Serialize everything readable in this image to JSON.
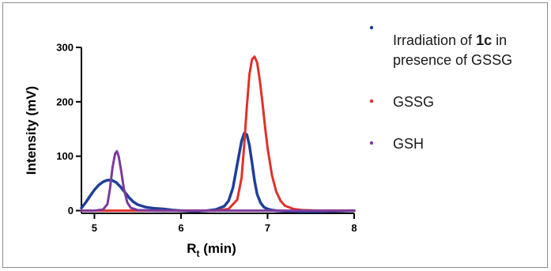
{
  "chart_data": {
    "type": "line",
    "xlabel": {
      "main": "R",
      "sub": "t",
      "unit": " (min)"
    },
    "ylabel": "Intensity  (mV)",
    "xlim": [
      4.85,
      8.0
    ],
    "ylim": [
      -5,
      300
    ],
    "xticks": [
      {
        "v": 5,
        "label": "5"
      },
      {
        "v": 6,
        "label": "6"
      },
      {
        "v": 7,
        "label": "7"
      },
      {
        "v": 8,
        "label": "8"
      }
    ],
    "yticks": [
      {
        "v": 0,
        "label": "0"
      },
      {
        "v": 100,
        "label": "100"
      },
      {
        "v": 200,
        "label": "200"
      },
      {
        "v": 300,
        "label": "300"
      }
    ],
    "grid": false,
    "legend_position": "right",
    "series": [
      {
        "name": "Irradiation of 1c in presence of GSSG",
        "legend_lines": [
          [
            {
              "text": "Irradiation of ",
              "bold": false
            },
            {
              "text": "1c",
              "bold": true
            },
            {
              "text": " in",
              "bold": false
            }
          ],
          [
            {
              "text": "presence of GSSG",
              "bold": false
            }
          ]
        ],
        "color": "#1f3f9a",
        "x": [
          4.85,
          4.9,
          4.95,
          5.0,
          5.05,
          5.1,
          5.15,
          5.2,
          5.25,
          5.3,
          5.35,
          5.4,
          5.45,
          5.5,
          5.6,
          5.7,
          5.8,
          5.9,
          6.0,
          6.1,
          6.2,
          6.3,
          6.4,
          6.5,
          6.55,
          6.6,
          6.65,
          6.7,
          6.73,
          6.76,
          6.79,
          6.82,
          6.85,
          6.88,
          6.92,
          6.96,
          7.0,
          7.05,
          7.1,
          7.2,
          7.4,
          7.6,
          7.8,
          8.0
        ],
        "y": [
          5,
          15,
          27,
          38,
          47,
          53,
          56,
          56,
          52,
          44,
          34,
          24,
          16,
          11,
          6,
          4,
          3,
          1,
          0,
          -1,
          -1,
          0,
          2,
          8,
          18,
          42,
          85,
          128,
          142,
          140,
          120,
          88,
          55,
          30,
          14,
          6,
          3,
          1,
          0,
          -1,
          -2,
          -2,
          -1,
          0
        ]
      },
      {
        "name": "GSSG",
        "color": "#e0312b",
        "x": [
          4.85,
          5.5,
          6.0,
          6.4,
          6.55,
          6.65,
          6.7,
          6.73,
          6.76,
          6.79,
          6.82,
          6.85,
          6.88,
          6.91,
          6.94,
          6.97,
          7.0,
          7.05,
          7.1,
          7.15,
          7.2,
          7.3,
          7.4,
          7.6,
          7.8,
          8.0
        ],
        "y": [
          0,
          0,
          0,
          0,
          3,
          20,
          60,
          120,
          190,
          250,
          278,
          283,
          272,
          240,
          200,
          155,
          115,
          65,
          35,
          18,
          9,
          3,
          1,
          0,
          0,
          0
        ]
      },
      {
        "name": "GSH",
        "color": "#7d3a9a",
        "x": [
          4.85,
          5.0,
          5.1,
          5.15,
          5.18,
          5.21,
          5.24,
          5.26,
          5.28,
          5.31,
          5.34,
          5.38,
          5.42,
          5.5,
          5.7,
          6.0,
          7.0,
          8.0
        ],
        "y": [
          0,
          0,
          2,
          12,
          40,
          80,
          105,
          109,
          100,
          72,
          40,
          15,
          5,
          1,
          0,
          0,
          0,
          0
        ]
      }
    ]
  }
}
